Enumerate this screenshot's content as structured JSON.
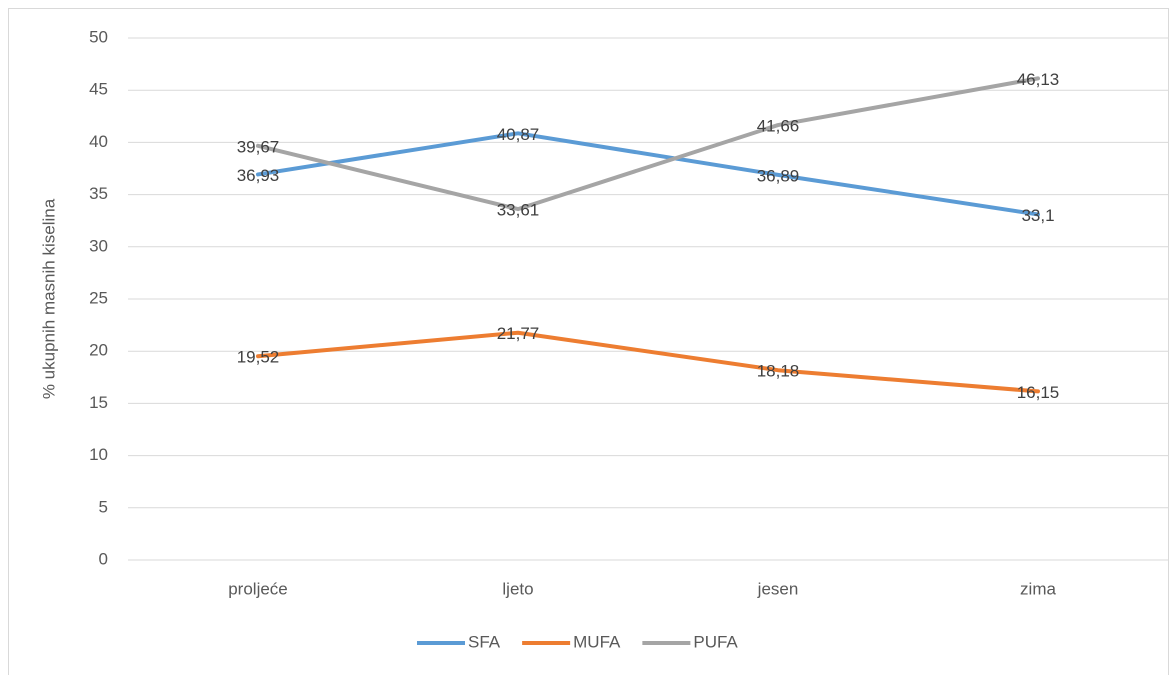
{
  "chart_data": {
    "type": "line",
    "y_label": "% ukupnih masnih kiselina",
    "categories": [
      "proljeće",
      "ljeto",
      "jesen",
      "zima"
    ],
    "series": [
      {
        "name": "SFA",
        "color": "#5b9bd5",
        "values": [
          36.93,
          40.87,
          36.89,
          33.1
        ],
        "value_labels": [
          "36,93",
          "40,87",
          "36,89",
          "33,1"
        ]
      },
      {
        "name": "MUFA",
        "color": "#ed7d31",
        "values": [
          19.52,
          21.77,
          18.18,
          16.15
        ],
        "value_labels": [
          "19,52",
          "21,77",
          "18,18",
          "16,15"
        ]
      },
      {
        "name": "PUFA",
        "color": "#a5a5a5",
        "values": [
          39.67,
          33.61,
          41.66,
          46.13
        ],
        "value_labels": [
          "39,67",
          "33,61",
          "41,66",
          "46,13"
        ]
      }
    ],
    "ylim": [
      0,
      50
    ],
    "yticks": [
      0,
      5,
      10,
      15,
      20,
      25,
      30,
      35,
      40,
      45,
      50
    ],
    "grid": true,
    "legend": "bottom"
  }
}
